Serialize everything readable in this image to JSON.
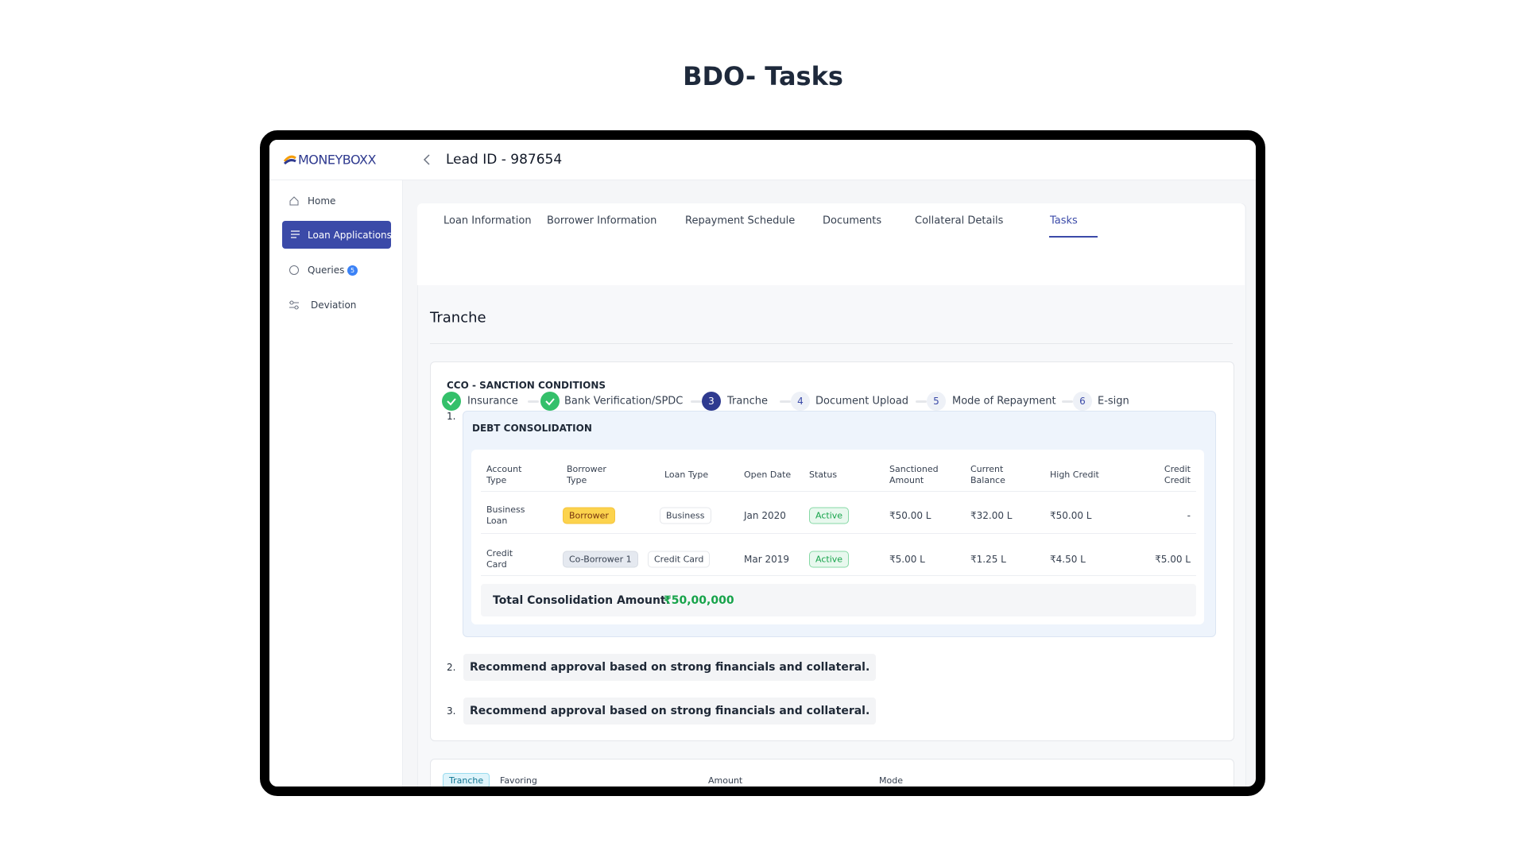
{
  "page_title": "BDO- Tasks",
  "app": {
    "logo": "MONEYBOXX",
    "lead_id": "Lead ID - 987654",
    "nav": [
      {
        "label": "Home"
      },
      {
        "label": "Loan Applications",
        "active": true
      },
      {
        "label": "Queries",
        "badge": "5"
      },
      {
        "label": "Deviation"
      }
    ]
  },
  "tabs": {
    "items": [
      "Loan Information",
      "Borrower Information",
      "Repayment Schedule",
      "Documents",
      "Collateral Details",
      "Tasks"
    ],
    "active": 5
  },
  "steps": [
    {
      "label": "Insurance",
      "done": true
    },
    {
      "label": "Bank Verification/SPDC",
      "done": true
    },
    {
      "number": "3",
      "label": "Tranche",
      "current": true
    },
    {
      "number": "4",
      "label": "Document Upload"
    },
    {
      "number": "5",
      "label": "Mode of Repayment"
    },
    {
      "number": "6",
      "label": "E-sign"
    }
  ],
  "section": {
    "heading": "Tranche",
    "card_title": "CCO - SANCTION CONDITIONS",
    "conditions": [
      {
        "number": "1.",
        "title": "DEBT CONSOLIDATION"
      },
      {
        "number": "2.",
        "text": "Recommend approval based on strong financials and collateral."
      },
      {
        "number": "3.",
        "text": "Recommend approval based on strong financials and collateral."
      }
    ],
    "table": {
      "columns": [
        "Account Type",
        "Borrower Type",
        "Loan Type",
        "Open Date",
        "Status",
        "Sanctioned Amount",
        "Current Balance",
        "High Credit",
        "Credit Credit"
      ],
      "rows": [
        [
          "Business Loan",
          "Borrower",
          "Business",
          "Jan 2020",
          "Active",
          "₹50.00 L",
          "₹32.00 L",
          "₹50.00 L",
          "-"
        ],
        [
          "Credit Card",
          "Co-Borrower 1",
          "Credit Card",
          "Mar 2019",
          "Active",
          "₹5.00 L",
          "₹1.25 L",
          "₹4.50 L",
          "₹5.00 L"
        ]
      ],
      "total_label": "Total Consolidation Amount:",
      "total_value": "₹50,00,000"
    }
  },
  "tranche_table": {
    "tag": "Tranche",
    "columns": [
      "Favoring",
      "Amount",
      "Mode"
    ]
  }
}
